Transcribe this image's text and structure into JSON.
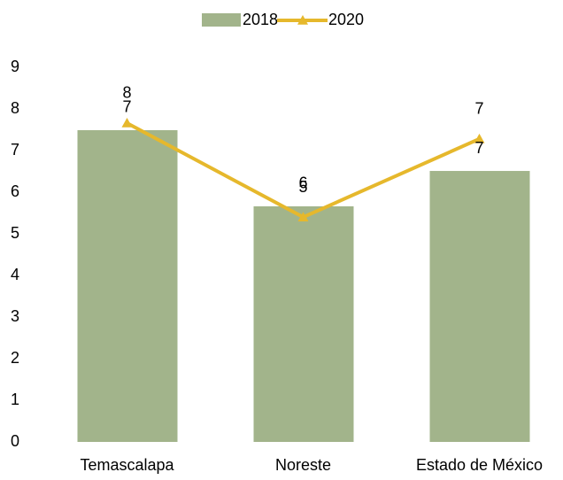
{
  "chart_data": {
    "type": "bar_line",
    "categories": [
      "Temascalapa",
      "Noreste",
      "Estado de México"
    ],
    "series": [
      {
        "name": "2018",
        "type": "bar",
        "color": "#a2b48b",
        "values": [
          7.49,
          5.66,
          6.51
        ],
        "value_labels": [
          "7",
          "6",
          "7"
        ]
      },
      {
        "name": "2020",
        "type": "line",
        "color": "#e6b82c",
        "values": [
          7.66,
          5.4,
          7.28
        ],
        "value_labels": [
          "8",
          "5",
          "7"
        ]
      }
    ],
    "ylim": [
      0,
      9
    ],
    "yticks": [
      0,
      1,
      2,
      3,
      4,
      5,
      6,
      7,
      8,
      9
    ],
    "grid": false,
    "legend": "top"
  }
}
